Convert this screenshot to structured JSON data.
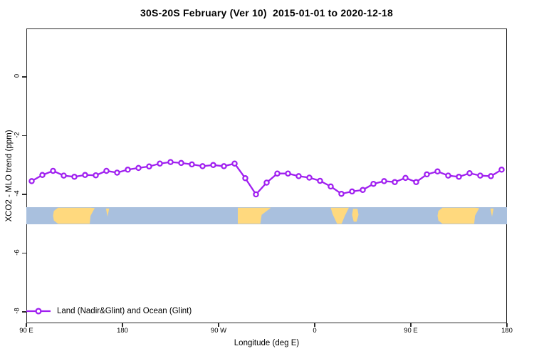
{
  "title": "30S-20S February (Ver 10)  2015-01-01 to 2020-12-18",
  "legend": {
    "label": "Land (Nadir&Glint) and Ocean (Glint)"
  },
  "colors": {
    "series_purple": "#A020F0",
    "marker_fill": "#FFFFFF",
    "ocean_blue": "#A9C0DE",
    "land_yellow": "#FFD97E",
    "axis_dark": "#2b2b2b"
  },
  "chart_data": {
    "type": "line",
    "title": "30S-20S February (Ver 10)  2015-01-01 to 2020-12-18",
    "xlabel": "Longitude (deg E)",
    "ylabel": "XCO2 - MLO trend (ppm)",
    "xlim": [
      90,
      540
    ],
    "ylim": [
      -8.4,
      1.6
    ],
    "grid": false,
    "legend_position": "bottom-left",
    "x_ticks": {
      "lons": [
        90,
        180,
        270,
        360,
        450,
        540
      ],
      "labels": [
        "90 E",
        "180",
        "90 W",
        "0",
        "90 E",
        "180"
      ]
    },
    "y_ticks": {
      "values": [
        0,
        -2,
        -4,
        -6,
        -8
      ],
      "labels": [
        "0",
        "-2",
        "-4",
        "-6",
        "-8"
      ]
    },
    "series": [
      {
        "name": "Land (Nadir&Glint) and Ocean (Glint)",
        "marker": "open-circle",
        "x": [
          95,
          105,
          115,
          125,
          135,
          145,
          155,
          165,
          175,
          185,
          195,
          205,
          215,
          225,
          235,
          245,
          255,
          265,
          275,
          285,
          295,
          305,
          315,
          325,
          335,
          345,
          355,
          365,
          375,
          385,
          395,
          405,
          415,
          425,
          435,
          445,
          455,
          465,
          475,
          485,
          495,
          505,
          515,
          525,
          535
        ],
        "values": [
          -3.55,
          -3.34,
          -3.2,
          -3.36,
          -3.4,
          -3.34,
          -3.35,
          -3.2,
          -3.26,
          -3.16,
          -3.1,
          -3.05,
          -2.95,
          -2.9,
          -2.93,
          -2.98,
          -3.04,
          -3.0,
          -3.04,
          -2.95,
          -3.45,
          -4.0,
          -3.6,
          -3.29,
          -3.29,
          -3.38,
          -3.43,
          -3.54,
          -3.73,
          -3.98,
          -3.9,
          -3.85,
          -3.64,
          -3.55,
          -3.58,
          -3.44,
          -3.58,
          -3.32,
          -3.22,
          -3.36,
          -3.4,
          -3.28,
          -3.36,
          -3.38,
          -3.16
        ]
      }
    ],
    "map_strip": {
      "description": "land-ocean band along longitude axis",
      "value_range": [
        -4.45,
        -5.02
      ],
      "repeat_period_deg": 360,
      "land_segments": [
        {
          "name": "australia",
          "lon": [
            115.0,
            154.0
          ],
          "shape": "australia"
        },
        {
          "name": "new-caledonia",
          "lon": [
            164.5,
            167.5
          ],
          "shape": "speck"
        },
        {
          "name": "south-america",
          "lon": [
            288.0,
            319.0
          ],
          "shape": "south-america"
        },
        {
          "name": "southern-africa",
          "lon": [
            375.0,
            392.0
          ],
          "shape": "africa"
        },
        {
          "name": "madagascar",
          "lon": [
            395.0,
            401.0
          ],
          "shape": "madagascar"
        }
      ]
    }
  }
}
